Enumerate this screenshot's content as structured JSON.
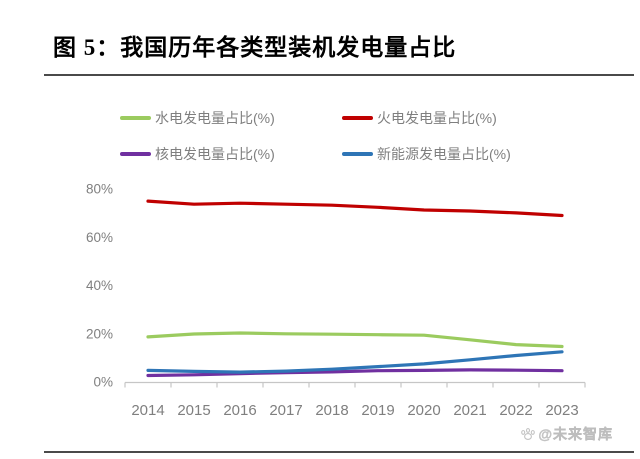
{
  "page": {
    "title": "图 5：我国历年各类型装机发电量占比",
    "watermark": "@未来智库"
  },
  "colors": {
    "hydro": "#9bcb5f",
    "thermal": "#c00000",
    "nuclear": "#7030a0",
    "new_energy": "#2e75b6",
    "axis_text": "#7f7f7f",
    "axis_line": "#c6c6c6",
    "rule_line": "#4a4a4a",
    "watermark": "#c8c8c8"
  },
  "chart_data": {
    "type": "line",
    "title": "我国历年各类型装机发电量占比",
    "categories": [
      "2014",
      "2015",
      "2016",
      "2017",
      "2018",
      "2019",
      "2020",
      "2021",
      "2022",
      "2023"
    ],
    "series": [
      {
        "name": "水电发电量占比(%)",
        "color_key": "hydro",
        "values": [
          18.7,
          19.9,
          20.3,
          20.0,
          19.8,
          19.6,
          19.4,
          17.5,
          15.5,
          14.7
        ]
      },
      {
        "name": "火电发电量占比(%)",
        "color_key": "thermal",
        "values": [
          75.0,
          73.7,
          74.1,
          73.7,
          73.3,
          72.4,
          71.3,
          70.9,
          70.1,
          69.0
        ]
      },
      {
        "name": "核电发电量占比(%)",
        "color_key": "nuclear",
        "values": [
          2.7,
          3.0,
          3.5,
          3.9,
          4.2,
          4.7,
          4.8,
          5.0,
          4.9,
          4.7
        ]
      },
      {
        "name": "新能源发电量占比(%)",
        "color_key": "new_energy",
        "values": [
          4.8,
          4.4,
          4.1,
          4.5,
          5.3,
          6.4,
          7.5,
          9.2,
          11.0,
          12.5
        ]
      }
    ],
    "xlabel": "",
    "ylabel": "",
    "ylim": [
      0,
      80
    ],
    "y_ticks": [
      "0%",
      "20%",
      "40%",
      "60%",
      "80%"
    ],
    "y_tick_values": [
      0,
      20,
      40,
      60,
      80
    ],
    "grid": false,
    "legend_position": "top"
  }
}
